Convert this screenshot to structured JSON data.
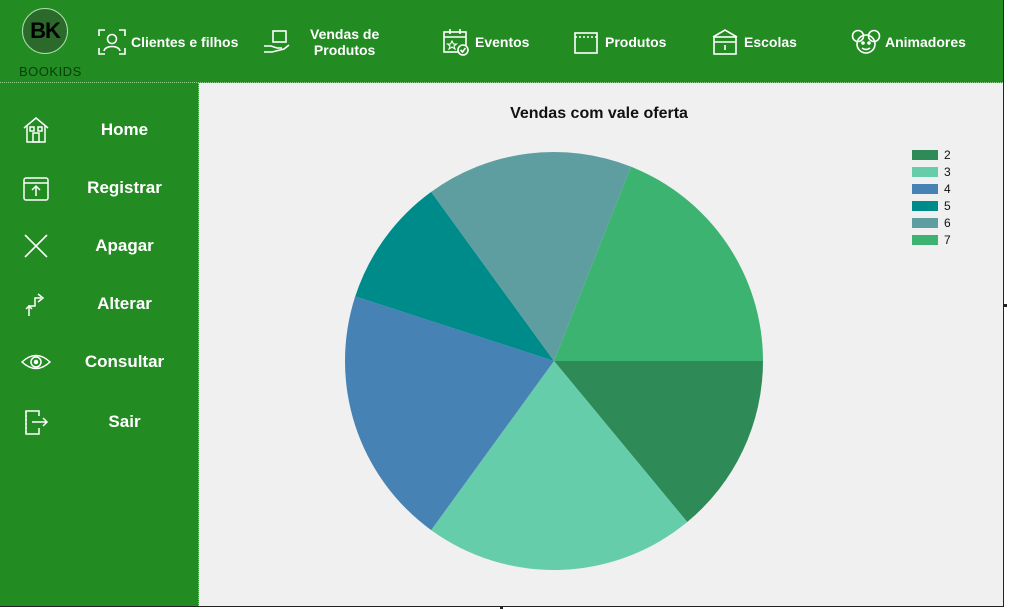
{
  "app": {
    "logo_initials": "BK",
    "logo_word": "BOOKIDS"
  },
  "topnav": [
    {
      "label": "Clientes e filhos",
      "icon": "client-scan-icon"
    },
    {
      "label": "Vendas de Produtos",
      "line1": "Vendas de",
      "line2": "Produtos",
      "icon": "hand-box-icon"
    },
    {
      "label": "Eventos",
      "icon": "calendar-icon"
    },
    {
      "label": "Produtos",
      "icon": "box-icon"
    },
    {
      "label": "Escolas",
      "icon": "school-icon"
    },
    {
      "label": "Animadores",
      "icon": "mouse-face-icon"
    }
  ],
  "sidebar": [
    {
      "label": "Home",
      "icon": "home-icon"
    },
    {
      "label": "Registrar",
      "icon": "register-icon"
    },
    {
      "label": "Apagar",
      "icon": "delete-x-icon"
    },
    {
      "label": "Alterar",
      "icon": "swap-arrows-icon"
    },
    {
      "label": "Consultar",
      "icon": "eye-icon"
    },
    {
      "label": "Sair",
      "icon": "exit-door-icon"
    }
  ],
  "chart_data": {
    "type": "pie",
    "title": "Vendas com vale oferta",
    "categories": [
      "2",
      "3",
      "4",
      "5",
      "6",
      "7"
    ],
    "values": [
      14,
      21,
      20,
      10,
      16,
      19
    ],
    "colors": [
      "#2e8b57",
      "#66cdaa",
      "#4682b4",
      "#008b8b",
      "#5f9ea0",
      "#3cb371"
    ],
    "start": "3 o'clock",
    "direction": "clockwise",
    "legend_position": "top-right"
  }
}
